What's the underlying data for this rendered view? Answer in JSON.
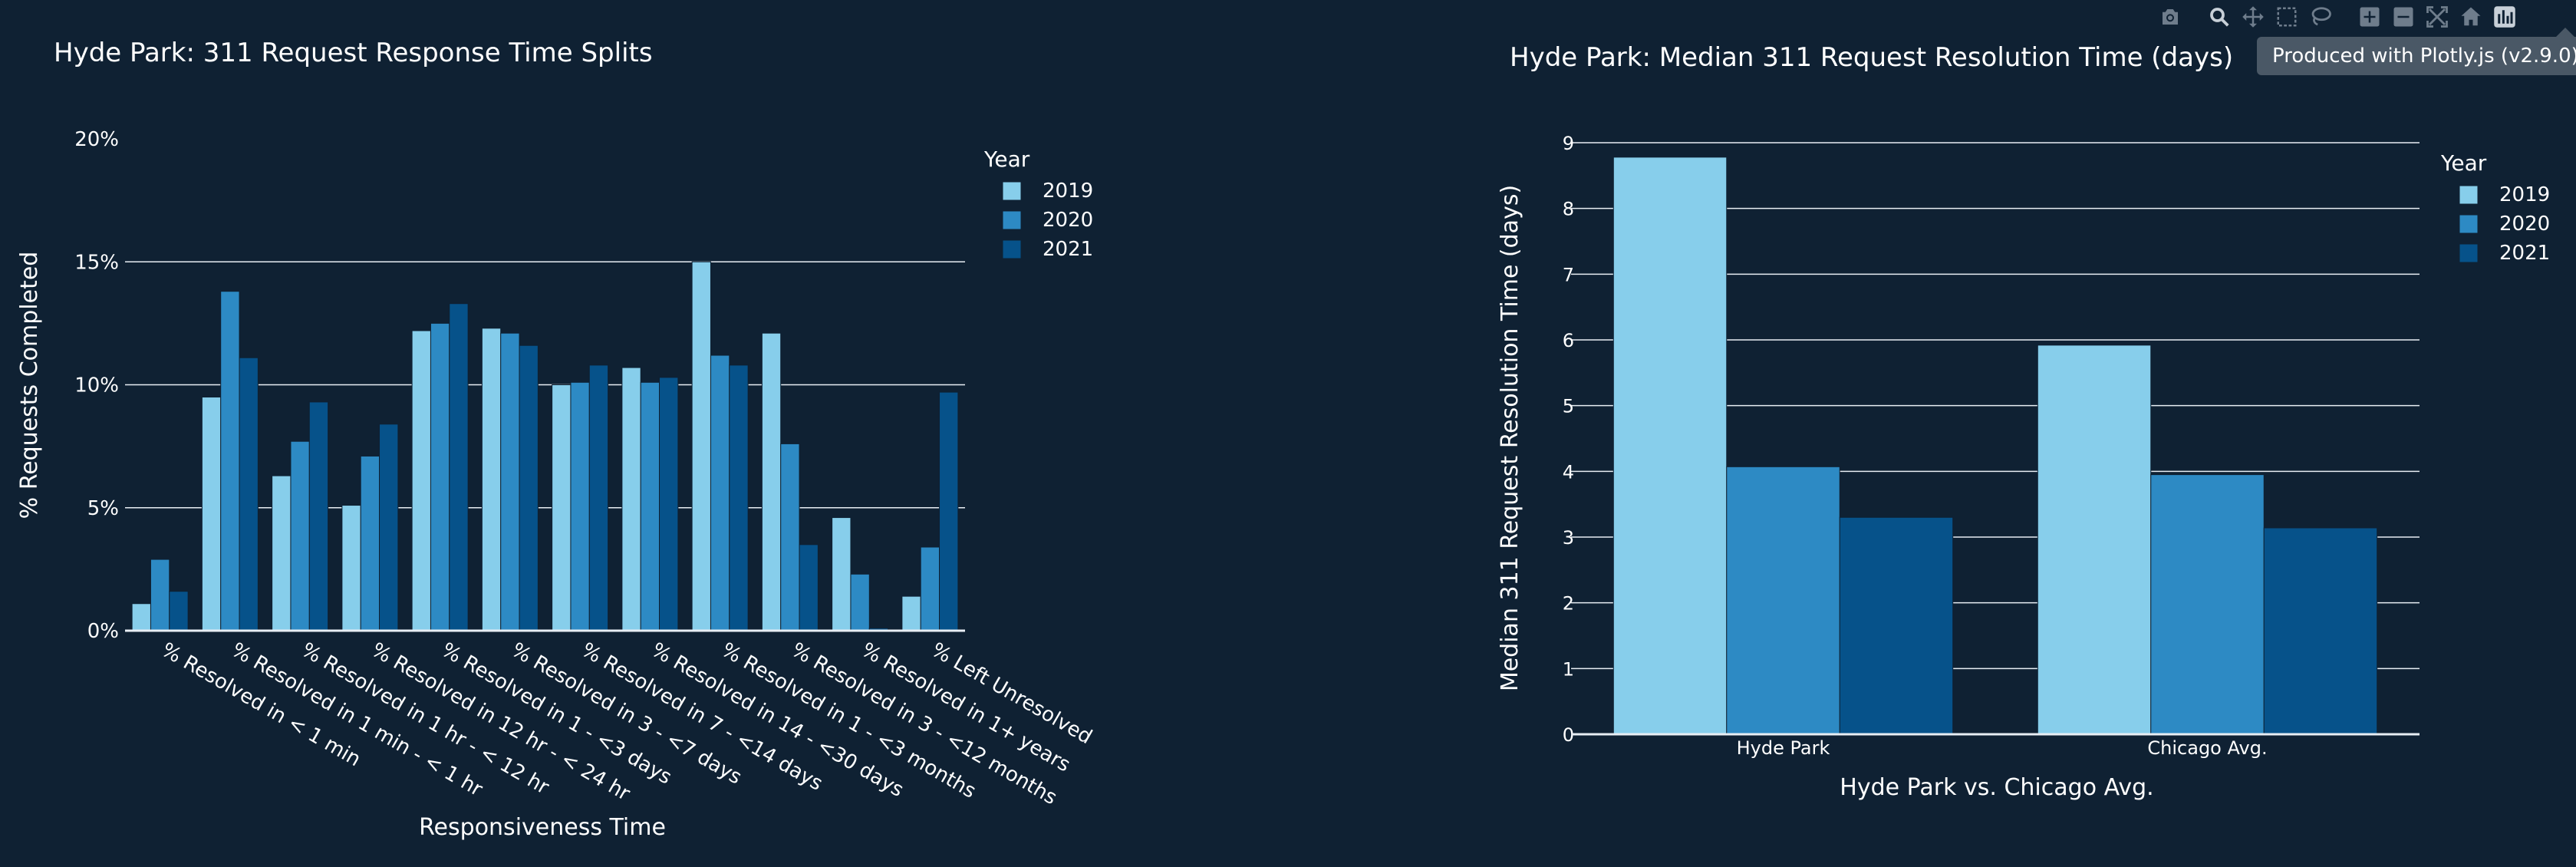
{
  "colors": {
    "background": "#0f2133",
    "series": [
      "#87ceeb",
      "#2d8ac4",
      "#06528a"
    ],
    "grid": "#e8eef4"
  },
  "modebar": {
    "icons": [
      "camera-icon",
      "zoom-icon",
      "pan-icon",
      "box-select-icon",
      "lasso-icon",
      "zoom-in-icon",
      "zoom-out-icon",
      "autoscale-icon",
      "home-icon",
      "plotly-logo-icon"
    ],
    "tooltip": "Produced with Plotly.js (v2.9.0)"
  },
  "chart_data": [
    {
      "type": "bar",
      "title": "Hyde Park: 311 Request Response Time Splits",
      "xlabel": "Responsiveness Time",
      "ylabel": "% Requests Completed",
      "ylim": [
        0,
        20
      ],
      "yticks": [
        0,
        5,
        10,
        15,
        20
      ],
      "ytick_labels": [
        "0%",
        "5%",
        "10%",
        "15%",
        "20%"
      ],
      "grid": true,
      "legend_title": "Year",
      "legend_placement": "top-right",
      "categories": [
        "% Resolved in < 1 min",
        "% Resolved in 1 min - < 1 hr",
        "% Resolved in 1 hr - < 12 hr",
        "% Resolved in 12 hr - < 24 hr",
        "% Resolved in 1 - <3 days",
        "% Resolved in 3 - <7 days",
        "% Resolved in 7 - <14 days",
        "% Resolved in 14 - <30 days",
        "% Resolved in 1 - <3 months",
        "% Resolved in 3 - <12 months",
        "% Resolved in 1+ years",
        "% Left Unresolved"
      ],
      "series": [
        {
          "name": "2019",
          "values": [
            1.1,
            9.5,
            6.3,
            5.1,
            12.2,
            12.3,
            10.0,
            10.7,
            15.0,
            12.1,
            4.6,
            1.4
          ]
        },
        {
          "name": "2020",
          "values": [
            2.9,
            13.8,
            7.7,
            7.1,
            12.5,
            12.1,
            10.1,
            10.1,
            11.2,
            7.6,
            2.3,
            3.4
          ]
        },
        {
          "name": "2021",
          "values": [
            1.6,
            11.1,
            9.3,
            8.4,
            13.3,
            11.6,
            10.8,
            10.3,
            10.8,
            3.5,
            0.1,
            9.7
          ]
        }
      ]
    },
    {
      "type": "bar",
      "title": "Hyde Park: Median 311 Request Resolution Time (days)",
      "xlabel": "Hyde Park vs. Chicago Avg.",
      "ylabel": "Median 311 Request Resolution Time (days)",
      "ylim": [
        0,
        9
      ],
      "yticks": [
        0,
        1,
        2,
        3,
        4,
        5,
        6,
        7,
        8,
        9
      ],
      "ytick_labels": [
        "0",
        "1",
        "2",
        "3",
        "4",
        "5",
        "6",
        "7",
        "8",
        "9"
      ],
      "grid": true,
      "legend_title": "Year",
      "legend_placement": "top-right",
      "categories": [
        "Hyde Park",
        "Chicago Avg."
      ],
      "series": [
        {
          "name": "2019",
          "values": [
            8.78,
            5.92
          ]
        },
        {
          "name": "2020",
          "values": [
            4.07,
            3.95
          ]
        },
        {
          "name": "2021",
          "values": [
            3.3,
            3.14
          ]
        }
      ]
    }
  ]
}
